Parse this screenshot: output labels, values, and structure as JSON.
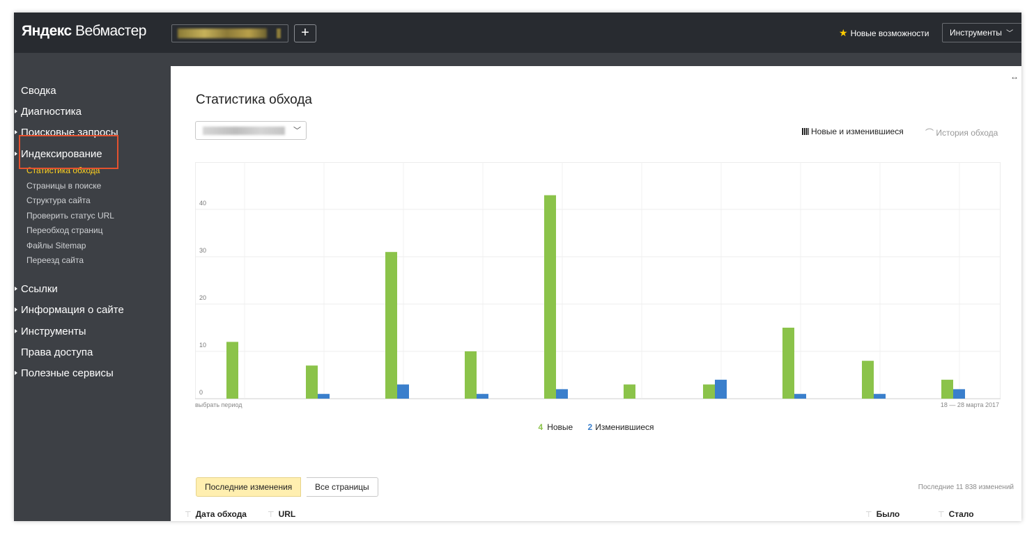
{
  "header": {
    "logo_bold": "Яндекс",
    "logo_light": "Вебмастер",
    "add_label": "+",
    "news_label": "Новые возможности",
    "tools_label": "Инструменты"
  },
  "sidebar": {
    "items": [
      {
        "label": "Сводка",
        "arrow": false
      },
      {
        "label": "Диагностика",
        "arrow": true
      },
      {
        "label": "Поисковые запросы",
        "arrow": true
      },
      {
        "label": "Индексирование",
        "arrow": true
      },
      {
        "label": "Ссылки",
        "arrow": true
      },
      {
        "label": "Информация о сайте",
        "arrow": true
      },
      {
        "label": "Инструменты",
        "arrow": true
      },
      {
        "label": "Права доступа",
        "arrow": false
      },
      {
        "label": "Полезные сервисы",
        "arrow": true
      }
    ],
    "subitems": [
      {
        "label": "Статистика обхода",
        "active": true
      },
      {
        "label": "Страницы в поиске",
        "active": false
      },
      {
        "label": "Структура сайта",
        "active": false
      },
      {
        "label": "Проверить статус URL",
        "active": false
      },
      {
        "label": "Переобход страниц",
        "active": false
      },
      {
        "label": "Файлы Sitemap",
        "active": false
      },
      {
        "label": "Переезд сайта",
        "active": false
      }
    ]
  },
  "main": {
    "title": "Статистика обхода",
    "expand_icon": "↔",
    "mode_new_label": "Новые и изменившиеся",
    "mode_history_label": "История обхода",
    "legend": {
      "new_count": "4",
      "new_label": "Новые",
      "changed_count": "2",
      "changed_label": "Изменившиеся"
    },
    "tabs": [
      {
        "label": "Последние изменения",
        "active": true
      },
      {
        "label": "Все страницы",
        "active": false
      }
    ],
    "changes_count": "Последние 11 838 изменений",
    "columns": [
      "Дата обхода",
      "URL",
      "Было",
      "Стало"
    ]
  },
  "colors": {
    "new": "#8bc34a",
    "changed": "#3a7fcc",
    "active_nav": "#ffd21f",
    "highlight": "#e5512e"
  },
  "chart_data": {
    "type": "bar",
    "categories": [
      "",
      "",
      "",
      "",
      "",
      "",
      "",
      "",
      "",
      ""
    ],
    "series": [
      {
        "name": "Новые",
        "values": [
          12,
          7,
          31,
          10,
          43,
          3,
          3,
          15,
          8,
          4
        ]
      },
      {
        "name": "Изменившиеся",
        "values": [
          0,
          1,
          3,
          1,
          2,
          0,
          4,
          1,
          1,
          2
        ]
      }
    ],
    "ylim": [
      0,
      50
    ],
    "yticks": [
      "0",
      "10",
      "20",
      "30",
      "40"
    ],
    "x_left_label": "выбрать период",
    "x_right_label": "18 — 28 марта 2017",
    "grid": true
  }
}
